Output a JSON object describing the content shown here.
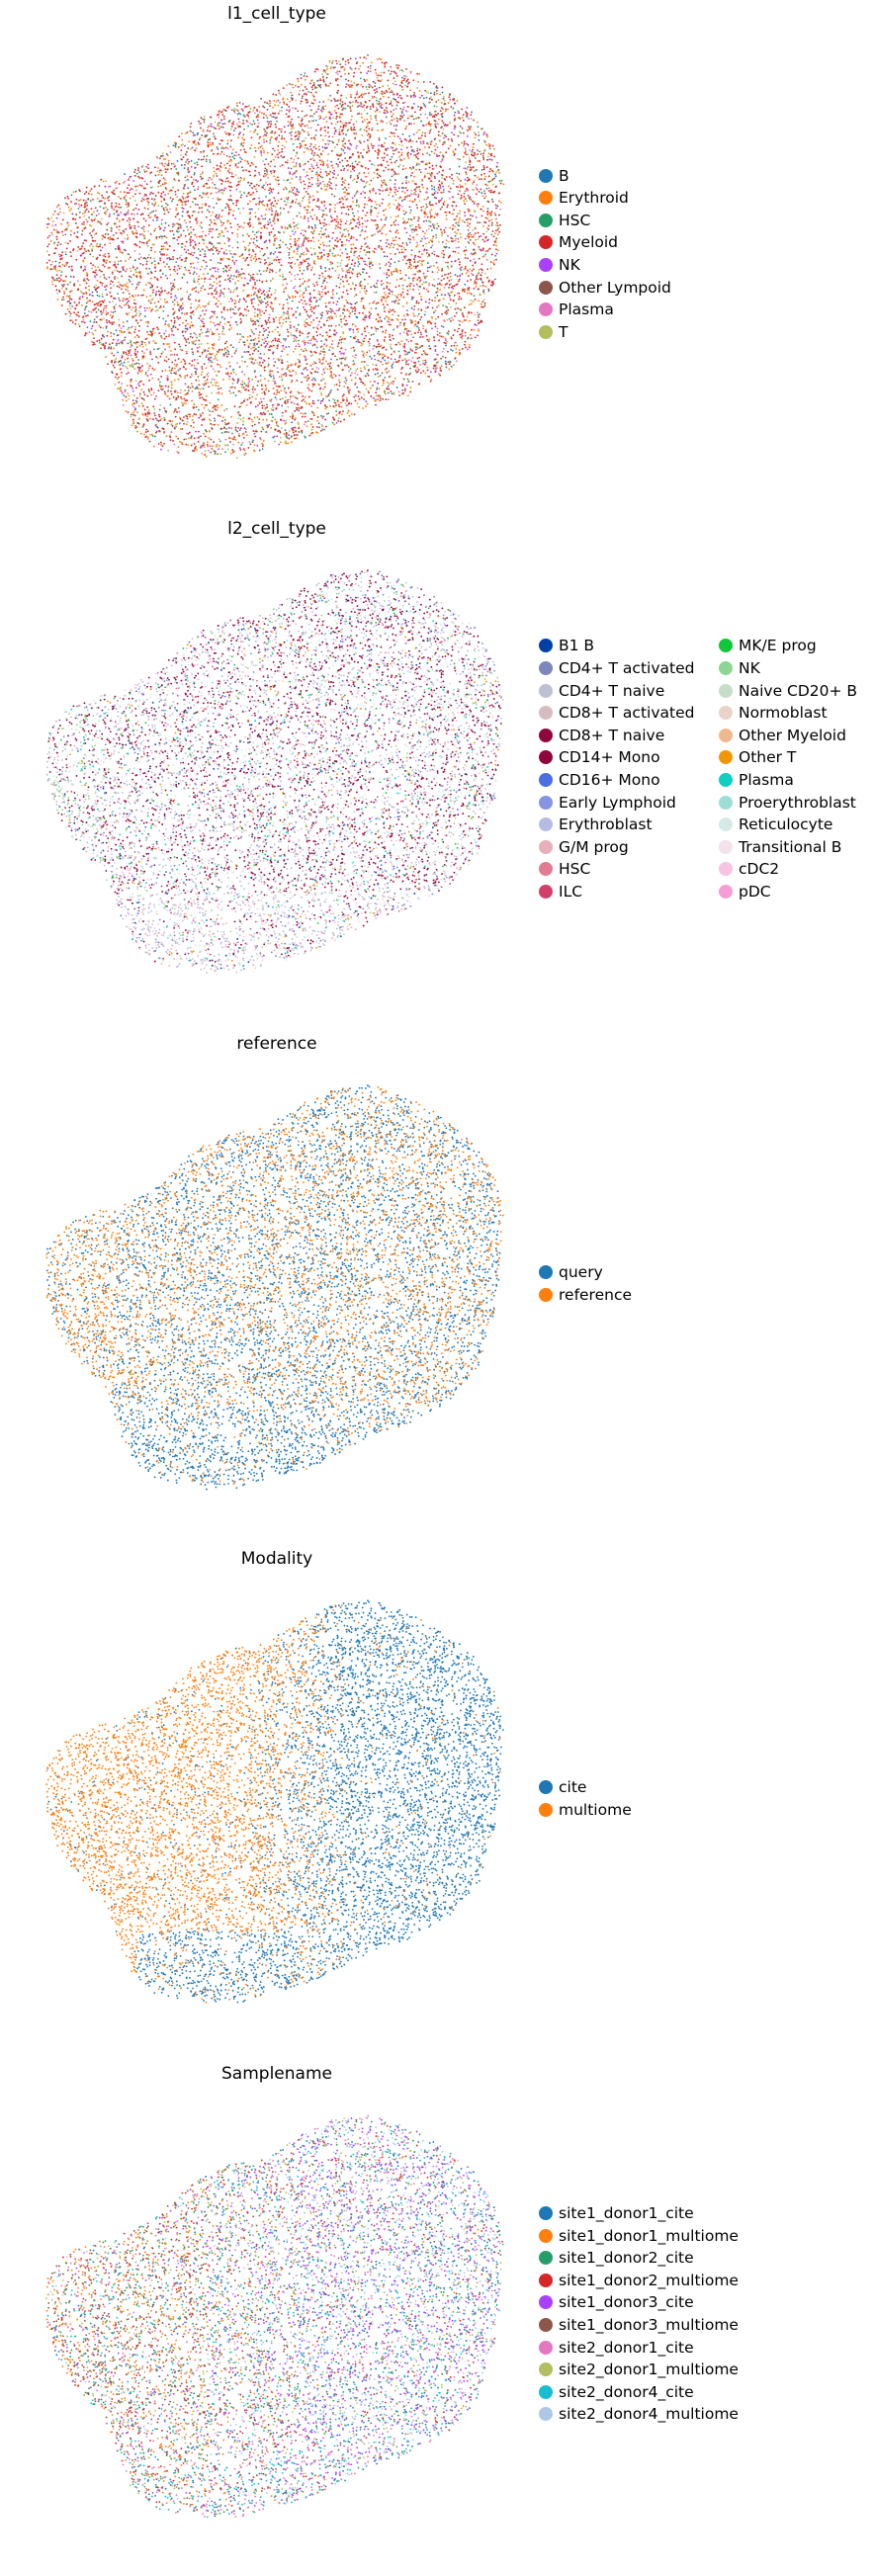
{
  "chart_data": [
    {
      "type": "scatter",
      "title": "l1_cell_type",
      "xlabel": "",
      "ylabel": "",
      "legend_placement": "right",
      "legend_columns": 1,
      "grid": false,
      "categories": [
        "B",
        "Erythroid",
        "HSC",
        "Myeloid",
        "NK",
        "Other Lympoid",
        "Plasma",
        "T"
      ],
      "colors": [
        "#1f77b4",
        "#ff7f0e",
        "#279e68",
        "#d62728",
        "#aa40fc",
        "#8c564b",
        "#e377c2",
        "#b5bd61"
      ]
    },
    {
      "type": "scatter",
      "title": "l2_cell_type",
      "xlabel": "",
      "ylabel": "",
      "legend_placement": "right",
      "legend_columns": 2,
      "grid": false,
      "categories": [
        "B1 B",
        "CD4+ T activated",
        "CD4+ T naive",
        "CD8+ T activated",
        "CD8+ T naive",
        "CD14+ Mono",
        "CD16+ Mono",
        "Early Lymphoid",
        "Erythroblast",
        "G/M prog",
        "HSC",
        "ILC",
        "MK/E prog",
        "NK",
        "Naive CD20+ B",
        "Normoblast",
        "Other Myeloid",
        "Other T",
        "Plasma",
        "Proerythroblast",
        "Reticulocyte",
        "Transitional B",
        "cDC2",
        "pDC"
      ],
      "colors": [
        "#023fa5",
        "#7d87b9",
        "#bec1d4",
        "#d6bcc0",
        "#8e063b",
        "#8e063b",
        "#4a6fe3",
        "#8595e1",
        "#b5bbe3",
        "#e6afb9",
        "#e07b91",
        "#d33f6a",
        "#11c638",
        "#8dd593",
        "#c6dec7",
        "#ead3c6",
        "#f0b98d",
        "#ef9708",
        "#0fcfc0",
        "#9cded6",
        "#d5eae7",
        "#f3e1eb",
        "#f6c4e1",
        "#f79cd4"
      ]
    },
    {
      "type": "scatter",
      "title": "reference",
      "xlabel": "",
      "ylabel": "",
      "legend_placement": "right",
      "legend_columns": 1,
      "grid": false,
      "categories": [
        "query",
        "reference"
      ],
      "colors": [
        "#1f77b4",
        "#ff7f0e"
      ]
    },
    {
      "type": "scatter",
      "title": "Modality",
      "xlabel": "",
      "ylabel": "",
      "legend_placement": "right",
      "legend_columns": 1,
      "grid": false,
      "categories": [
        "cite",
        "multiome"
      ],
      "colors": [
        "#1f77b4",
        "#ff7f0e"
      ]
    },
    {
      "type": "scatter",
      "title": "Samplename",
      "xlabel": "",
      "ylabel": "",
      "legend_placement": "right",
      "legend_columns": 1,
      "grid": false,
      "categories": [
        "site1_donor1_cite",
        "site1_donor1_multiome",
        "site1_donor2_cite",
        "site1_donor2_multiome",
        "site1_donor3_cite",
        "site1_donor3_multiome",
        "site2_donor1_cite",
        "site2_donor1_multiome",
        "site2_donor4_cite",
        "site2_donor4_multiome"
      ],
      "colors": [
        "#1f77b4",
        "#ff7f0e",
        "#279e68",
        "#d62728",
        "#aa40fc",
        "#8c564b",
        "#e377c2",
        "#b5bd61",
        "#17becf",
        "#aec7e8"
      ]
    }
  ]
}
